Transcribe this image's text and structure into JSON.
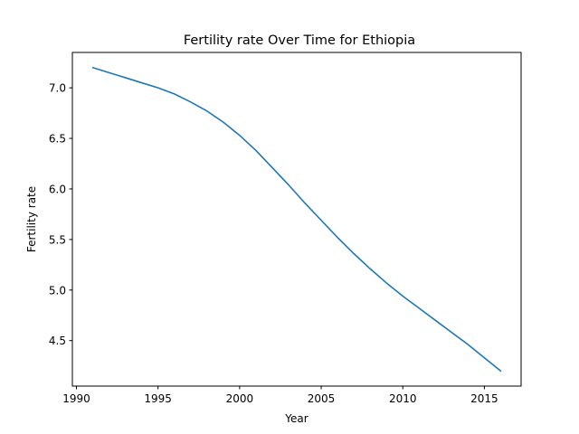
{
  "chart_data": {
    "type": "line",
    "title": "Fertility rate Over Time for Ethiopia",
    "xlabel": "Year",
    "ylabel": "Fertility rate",
    "xlim": [
      1989.75,
      2017.25
    ],
    "ylim": [
      4.05,
      7.35
    ],
    "xticks": [
      1990,
      1995,
      2000,
      2005,
      2010,
      2015
    ],
    "yticks": [
      4.5,
      5.0,
      5.5,
      6.0,
      6.5,
      7.0
    ],
    "grid": false,
    "series": [
      {
        "color": "#1f77b4",
        "x": [
          1991,
          1992,
          1993,
          1994,
          1995,
          1996,
          1997,
          1998,
          1999,
          2000,
          2001,
          2002,
          2003,
          2004,
          2005,
          2006,
          2007,
          2008,
          2009,
          2010,
          2011,
          2012,
          2013,
          2014,
          2015,
          2016
        ],
        "y": [
          7.2,
          7.15,
          7.1,
          7.05,
          7.0,
          6.94,
          6.86,
          6.77,
          6.66,
          6.53,
          6.38,
          6.21,
          6.04,
          5.86,
          5.69,
          5.52,
          5.36,
          5.21,
          5.07,
          4.94,
          4.82,
          4.7,
          4.58,
          4.46,
          4.33,
          4.2
        ]
      }
    ]
  }
}
